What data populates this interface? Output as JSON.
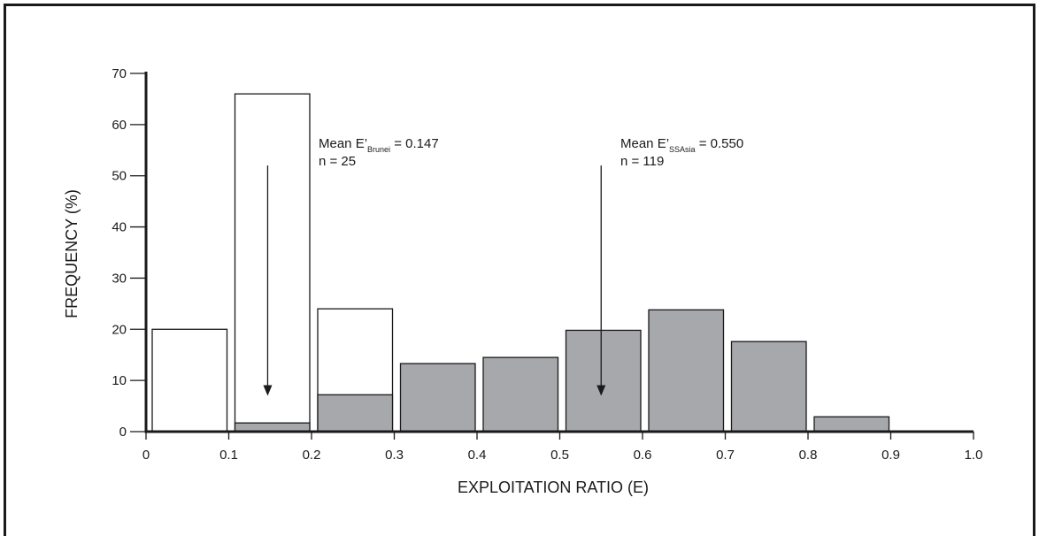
{
  "chart_data": {
    "type": "bar",
    "title": "",
    "xlabel": "EXPLOITATION RATIO (E)",
    "ylabel": "FREQUENCY (%)",
    "xlim": [
      0,
      1.0
    ],
    "ylim": [
      0,
      70
    ],
    "x_ticks": [
      "0",
      "0.1",
      "0.2",
      "0.3",
      "0.4",
      "0.5",
      "0.6",
      "0.7",
      "0.8",
      "0.9",
      "1.0"
    ],
    "y_ticks": [
      "0",
      "10",
      "20",
      "30",
      "40",
      "50",
      "60",
      "70"
    ],
    "bin_width": 0.1,
    "series": [
      {
        "fill": "#ffffff",
        "stroke": "#1a1a1a",
        "bins": [
          {
            "x0": 0.0,
            "x1": 0.1,
            "value": 20
          },
          {
            "x0": 0.1,
            "x1": 0.2,
            "value": 66
          },
          {
            "x0": 0.2,
            "x1": 0.3,
            "value": 24
          }
        ]
      },
      {
        "fill": "#a7a8ac",
        "stroke": "#1a1a1a",
        "bins": [
          {
            "x0": 0.1,
            "x1": 0.2,
            "value": 1.7
          },
          {
            "x0": 0.2,
            "x1": 0.3,
            "value": 7.2
          },
          {
            "x0": 0.3,
            "x1": 0.4,
            "value": 13.3
          },
          {
            "x0": 0.4,
            "x1": 0.5,
            "value": 14.5
          },
          {
            "x0": 0.5,
            "x1": 0.6,
            "value": 19.8
          },
          {
            "x0": 0.6,
            "x1": 0.7,
            "value": 23.8
          },
          {
            "x0": 0.7,
            "x1": 0.8,
            "value": 17.6
          },
          {
            "x0": 0.8,
            "x1": 0.9,
            "value": 2.9
          }
        ]
      }
    ],
    "annotations": [
      {
        "text_main": "Mean E’",
        "text_sub": "Brunei",
        "text_value": " = 0.147",
        "text_n": "n = 25",
        "arrow_x": 0.147,
        "arrow_from": 52,
        "arrow_to": 7
      },
      {
        "text_main": "Mean E’",
        "text_sub": "SSAsia",
        "text_value": " = 0.550",
        "text_n": "n = 119",
        "arrow_x": 0.55,
        "arrow_from": 52,
        "arrow_to": 7
      }
    ]
  }
}
